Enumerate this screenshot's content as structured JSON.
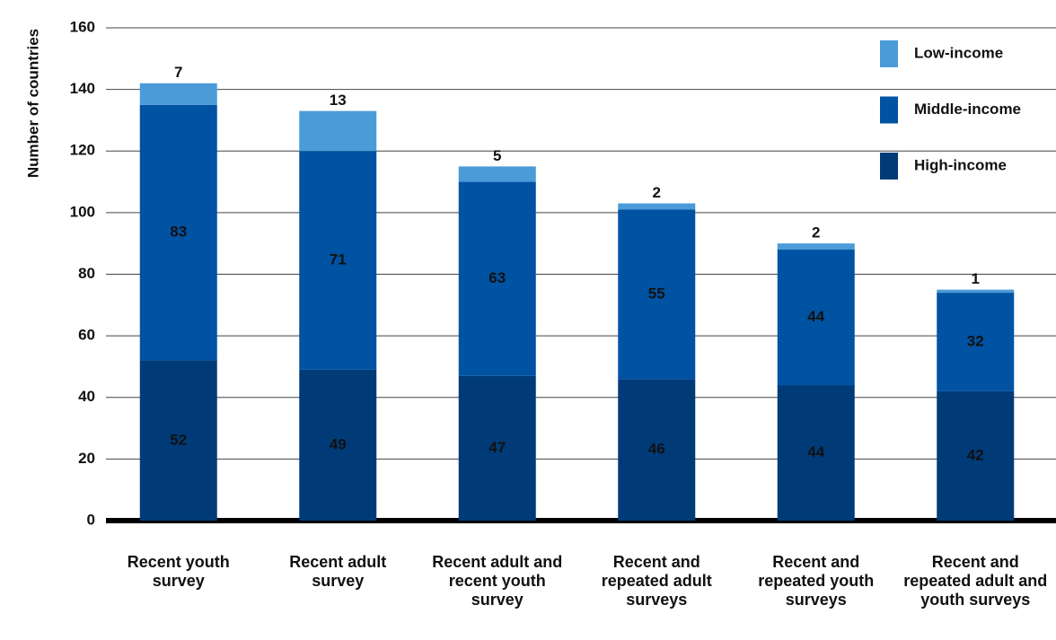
{
  "chart_data": {
    "type": "stacked-bar",
    "y_label": "Number of countries",
    "categories": [
      "Recent youth survey",
      "Recent adult survey",
      "Recent adult and recent youth survey",
      "Recent and repeated adult surveys",
      "Recent and repeated youth surveys",
      "Recent and repeated adult and youth surveys"
    ],
    "series": [
      {
        "name": "High-income",
        "color": "#003b78",
        "values": [
          52,
          49,
          47,
          46,
          44,
          42
        ]
      },
      {
        "name": "Middle-income",
        "color": "#0052a3",
        "values": [
          83,
          71,
          63,
          55,
          44,
          32
        ]
      },
      {
        "name": "Low-income",
        "color": "#4b9bd8",
        "values": [
          7,
          13,
          5,
          2,
          2,
          1
        ]
      }
    ],
    "ylim": [
      0,
      160
    ],
    "yticks": [
      0,
      20,
      40,
      60,
      80,
      100,
      120,
      140,
      160
    ],
    "grid": true,
    "legend": "top-right"
  }
}
